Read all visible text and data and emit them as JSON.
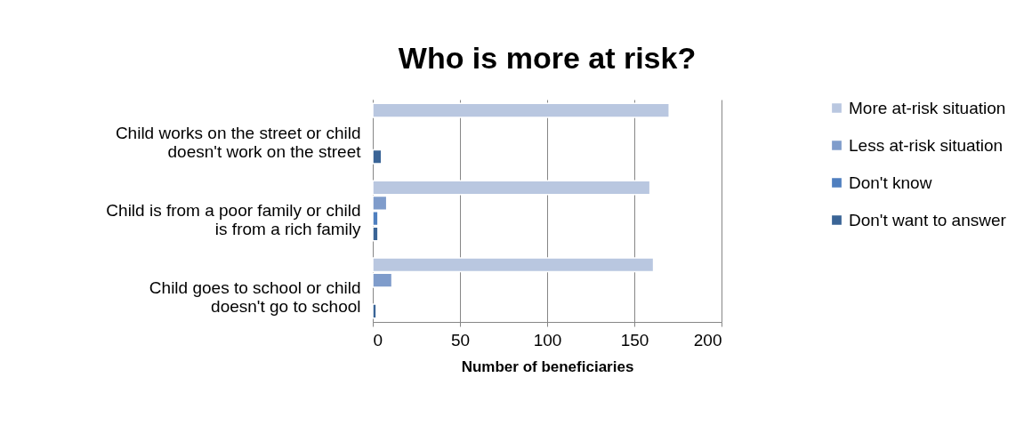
{
  "chart_data": {
    "type": "bar",
    "orientation": "horizontal",
    "title": "Who is more at risk?",
    "xlabel": "Number of beneficiaries",
    "categories": [
      "Child works on the street or child doesn't work on the street",
      "Child is from a poor family or child is from a rich family",
      "Child goes to school or child doesn't go to school"
    ],
    "series": [
      {
        "name": "More at-risk situation",
        "color": "#b9c7e0",
        "values": [
          170,
          159,
          161
        ]
      },
      {
        "name": "Less at-risk situation",
        "color": "#7f9ccb",
        "values": [
          0,
          8,
          11
        ]
      },
      {
        "name": "Don't know",
        "color": "#4f7fbf",
        "values": [
          0,
          3,
          0
        ]
      },
      {
        "name": "Don't want to answer",
        "color": "#3a6496",
        "values": [
          5,
          3,
          2
        ]
      }
    ],
    "xlim": [
      0,
      200
    ],
    "xticks": [
      0,
      50,
      100,
      150,
      200
    ],
    "grid": "x",
    "legend": "right"
  }
}
